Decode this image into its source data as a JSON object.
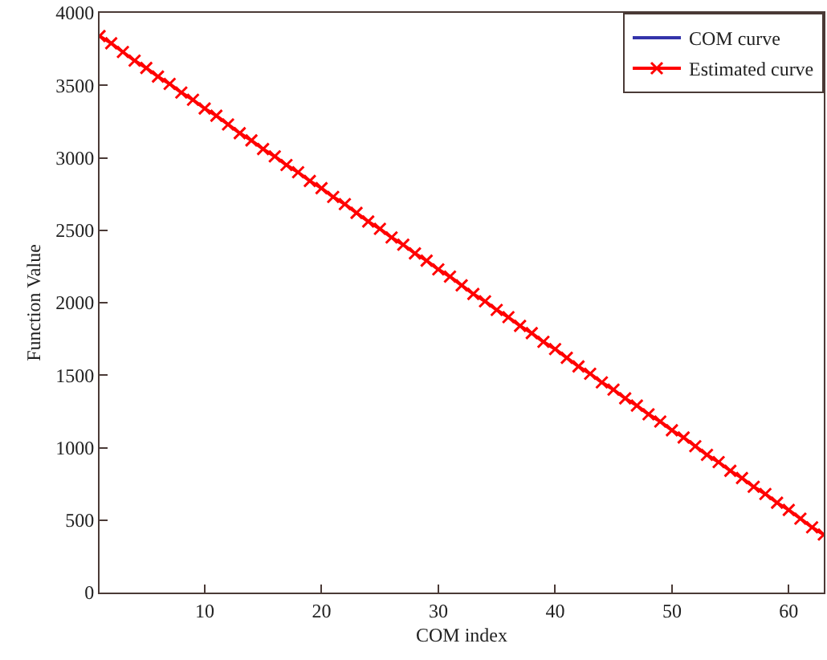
{
  "chart_data": {
    "type": "line",
    "xlabel": "COM index",
    "ylabel": "Function Value",
    "x": [
      1,
      2,
      3,
      4,
      5,
      6,
      7,
      8,
      9,
      10,
      11,
      12,
      13,
      14,
      15,
      16,
      17,
      18,
      19,
      20,
      21,
      22,
      23,
      24,
      25,
      26,
      27,
      28,
      29,
      30,
      31,
      32,
      33,
      34,
      35,
      36,
      37,
      38,
      39,
      40,
      41,
      42,
      43,
      44,
      45,
      46,
      47,
      48,
      49,
      50,
      51,
      52,
      53,
      54,
      55,
      56,
      57,
      58,
      59,
      60,
      61,
      62,
      63
    ],
    "series": [
      {
        "name": "COM curve",
        "color": "#3333aa",
        "marker": "none",
        "values": [
          null,
          null,
          null,
          null,
          null,
          null,
          null,
          null,
          null,
          null,
          null,
          null,
          null,
          null,
          null,
          null,
          null,
          null,
          null,
          null,
          null,
          null,
          null,
          null,
          null,
          null,
          null,
          null,
          null,
          null,
          null,
          null,
          null,
          null,
          null,
          null,
          null,
          null,
          null,
          null,
          null,
          null,
          null,
          null,
          null,
          null,
          null,
          null,
          null,
          null,
          null,
          null,
          null,
          null,
          null,
          null,
          null,
          null,
          null,
          null,
          null,
          null,
          null
        ]
      },
      {
        "name": "Estimated curve",
        "color": "#ff0000",
        "marker": "cross",
        "values": [
          3840,
          3790,
          3730,
          3670,
          3620,
          3560,
          3510,
          3450,
          3400,
          3340,
          3290,
          3230,
          3170,
          3120,
          3060,
          3010,
          2950,
          2900,
          2840,
          2790,
          2730,
          2680,
          2620,
          2560,
          2510,
          2450,
          2400,
          2340,
          2290,
          2230,
          2180,
          2120,
          2060,
          2010,
          1950,
          1900,
          1840,
          1790,
          1730,
          1680,
          1620,
          1560,
          1510,
          1450,
          1400,
          1340,
          1290,
          1230,
          1180,
          1120,
          1070,
          1010,
          950,
          900,
          840,
          790,
          730,
          680,
          620,
          570,
          510,
          450,
          400
        ]
      }
    ],
    "xlim": [
      1,
      63
    ],
    "xticks": [
      10,
      20,
      30,
      40,
      50,
      60
    ],
    "ylim": [
      0,
      4000
    ],
    "yticks": [
      0,
      500,
      1000,
      1500,
      2000,
      2500,
      3000,
      3500,
      4000
    ],
    "legend": "top right",
    "line_style": "solid"
  }
}
